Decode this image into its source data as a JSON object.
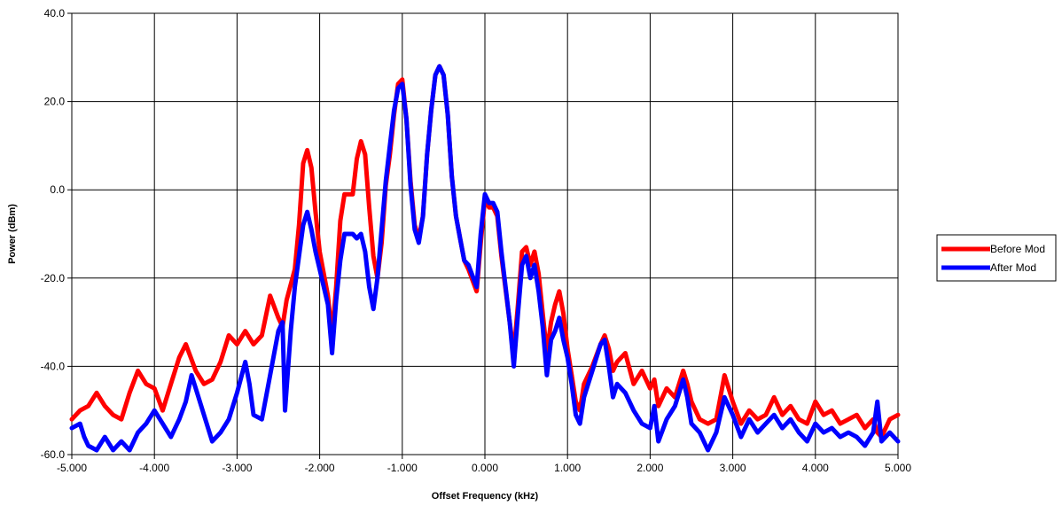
{
  "chart_data": {
    "type": "line",
    "xlabel": "Offset Frequency (kHz)",
    "ylabel": "Power (dBm)",
    "xlim": [
      -5,
      5
    ],
    "ylim": [
      -60,
      40
    ],
    "x_ticks": [
      "-5.000",
      "-4.000",
      "-3.000",
      "-2.000",
      "-1.000",
      "0.000",
      "1.000",
      "2.000",
      "3.000",
      "4.000",
      "5.000"
    ],
    "y_ticks": [
      "-60.0",
      "-40.0",
      "-20.0",
      "0.0",
      "20.0",
      "40.0"
    ],
    "grid": true,
    "legend_position": "right",
    "series": [
      {
        "name": "Before Mod",
        "color": "#ff0000",
        "points": [
          [
            -5.0,
            -52
          ],
          [
            -4.9,
            -50
          ],
          [
            -4.8,
            -49
          ],
          [
            -4.7,
            -46
          ],
          [
            -4.6,
            -49
          ],
          [
            -4.5,
            -51
          ],
          [
            -4.4,
            -52
          ],
          [
            -4.3,
            -46
          ],
          [
            -4.2,
            -41
          ],
          [
            -4.1,
            -44
          ],
          [
            -4.0,
            -45
          ],
          [
            -3.9,
            -50
          ],
          [
            -3.8,
            -44
          ],
          [
            -3.7,
            -38
          ],
          [
            -3.62,
            -35
          ],
          [
            -3.5,
            -41
          ],
          [
            -3.4,
            -44
          ],
          [
            -3.3,
            -43
          ],
          [
            -3.2,
            -39
          ],
          [
            -3.1,
            -33
          ],
          [
            -3.0,
            -35
          ],
          [
            -2.9,
            -32
          ],
          [
            -2.8,
            -35
          ],
          [
            -2.7,
            -33
          ],
          [
            -2.6,
            -24
          ],
          [
            -2.5,
            -29
          ],
          [
            -2.45,
            -31
          ],
          [
            -2.4,
            -25
          ],
          [
            -2.3,
            -18
          ],
          [
            -2.25,
            -8
          ],
          [
            -2.2,
            6
          ],
          [
            -2.15,
            9
          ],
          [
            -2.1,
            5
          ],
          [
            -2.05,
            -5
          ],
          [
            -2.0,
            -14
          ],
          [
            -1.9,
            -24
          ],
          [
            -1.85,
            -33
          ],
          [
            -1.8,
            -22
          ],
          [
            -1.75,
            -7
          ],
          [
            -1.7,
            -1
          ],
          [
            -1.6,
            -1
          ],
          [
            -1.55,
            7
          ],
          [
            -1.5,
            11
          ],
          [
            -1.45,
            8
          ],
          [
            -1.4,
            -4
          ],
          [
            -1.35,
            -15
          ],
          [
            -1.3,
            -20
          ],
          [
            -1.25,
            -12
          ],
          [
            -1.2,
            1
          ],
          [
            -1.15,
            8
          ],
          [
            -1.1,
            17
          ],
          [
            -1.05,
            24
          ],
          [
            -1.0,
            25
          ],
          [
            -0.95,
            16
          ],
          [
            -0.9,
            2
          ],
          [
            -0.85,
            -8
          ],
          [
            -0.8,
            -11
          ],
          [
            -0.75,
            -6
          ],
          [
            -0.7,
            8
          ],
          [
            -0.65,
            18
          ],
          [
            -0.6,
            26
          ],
          [
            -0.55,
            28
          ],
          [
            -0.5,
            26
          ],
          [
            -0.45,
            17
          ],
          [
            -0.4,
            3
          ],
          [
            -0.35,
            -6
          ],
          [
            -0.3,
            -11
          ],
          [
            -0.25,
            -16
          ],
          [
            -0.2,
            -18
          ],
          [
            -0.1,
            -23
          ],
          [
            -0.05,
            -12
          ],
          [
            0.0,
            -2
          ],
          [
            0.05,
            -4
          ],
          [
            0.1,
            -4
          ],
          [
            0.15,
            -6
          ],
          [
            0.2,
            -15
          ],
          [
            0.3,
            -30
          ],
          [
            0.35,
            -37
          ],
          [
            0.4,
            -26
          ],
          [
            0.45,
            -14
          ],
          [
            0.5,
            -13
          ],
          [
            0.55,
            -17
          ],
          [
            0.6,
            -14
          ],
          [
            0.65,
            -19
          ],
          [
            0.7,
            -28
          ],
          [
            0.75,
            -37
          ],
          [
            0.8,
            -30
          ],
          [
            0.85,
            -26
          ],
          [
            0.9,
            -23
          ],
          [
            0.95,
            -28
          ],
          [
            1.0,
            -36
          ],
          [
            1.05,
            -42
          ],
          [
            1.1,
            -48
          ],
          [
            1.15,
            -50
          ],
          [
            1.2,
            -44
          ],
          [
            1.3,
            -40
          ],
          [
            1.4,
            -35
          ],
          [
            1.45,
            -33
          ],
          [
            1.5,
            -36
          ],
          [
            1.55,
            -41
          ],
          [
            1.6,
            -39
          ],
          [
            1.7,
            -37
          ],
          [
            1.8,
            -44
          ],
          [
            1.9,
            -41
          ],
          [
            2.0,
            -45
          ],
          [
            2.05,
            -43
          ],
          [
            2.1,
            -49
          ],
          [
            2.2,
            -45
          ],
          [
            2.3,
            -47
          ],
          [
            2.4,
            -41
          ],
          [
            2.45,
            -44
          ],
          [
            2.5,
            -48
          ],
          [
            2.6,
            -52
          ],
          [
            2.7,
            -53
          ],
          [
            2.8,
            -52
          ],
          [
            2.9,
            -42
          ],
          [
            3.0,
            -48
          ],
          [
            3.1,
            -53
          ],
          [
            3.2,
            -50
          ],
          [
            3.3,
            -52
          ],
          [
            3.4,
            -51
          ],
          [
            3.5,
            -47
          ],
          [
            3.6,
            -51
          ],
          [
            3.7,
            -49
          ],
          [
            3.8,
            -52
          ],
          [
            3.9,
            -53
          ],
          [
            4.0,
            -48
          ],
          [
            4.1,
            -51
          ],
          [
            4.2,
            -50
          ],
          [
            4.3,
            -53
          ],
          [
            4.4,
            -52
          ],
          [
            4.5,
            -51
          ],
          [
            4.6,
            -54
          ],
          [
            4.7,
            -52
          ],
          [
            4.75,
            -55
          ],
          [
            4.8,
            -56
          ],
          [
            4.9,
            -52
          ],
          [
            5.0,
            -51
          ]
        ]
      },
      {
        "name": "After Mod",
        "color": "#0000ff",
        "points": [
          [
            -5.0,
            -54
          ],
          [
            -4.9,
            -53
          ],
          [
            -4.85,
            -56
          ],
          [
            -4.8,
            -58
          ],
          [
            -4.7,
            -59
          ],
          [
            -4.6,
            -56
          ],
          [
            -4.5,
            -59
          ],
          [
            -4.4,
            -57
          ],
          [
            -4.3,
            -59
          ],
          [
            -4.2,
            -55
          ],
          [
            -4.1,
            -53
          ],
          [
            -4.0,
            -50
          ],
          [
            -3.9,
            -53
          ],
          [
            -3.8,
            -56
          ],
          [
            -3.7,
            -52
          ],
          [
            -3.62,
            -48
          ],
          [
            -3.55,
            -42
          ],
          [
            -3.5,
            -45
          ],
          [
            -3.4,
            -51
          ],
          [
            -3.3,
            -57
          ],
          [
            -3.2,
            -55
          ],
          [
            -3.1,
            -52
          ],
          [
            -3.0,
            -46
          ],
          [
            -2.9,
            -39
          ],
          [
            -2.85,
            -44
          ],
          [
            -2.8,
            -51
          ],
          [
            -2.7,
            -52
          ],
          [
            -2.6,
            -42
          ],
          [
            -2.5,
            -32
          ],
          [
            -2.45,
            -30
          ],
          [
            -2.42,
            -50
          ],
          [
            -2.35,
            -32
          ],
          [
            -2.3,
            -22
          ],
          [
            -2.25,
            -15
          ],
          [
            -2.2,
            -8
          ],
          [
            -2.15,
            -5
          ],
          [
            -2.1,
            -9
          ],
          [
            -2.05,
            -14
          ],
          [
            -2.0,
            -18
          ],
          [
            -1.9,
            -26
          ],
          [
            -1.85,
            -37
          ],
          [
            -1.8,
            -25
          ],
          [
            -1.75,
            -16
          ],
          [
            -1.7,
            -10
          ],
          [
            -1.6,
            -10
          ],
          [
            -1.55,
            -11
          ],
          [
            -1.5,
            -10
          ],
          [
            -1.45,
            -14
          ],
          [
            -1.4,
            -22
          ],
          [
            -1.35,
            -27
          ],
          [
            -1.3,
            -20
          ],
          [
            -1.25,
            -9
          ],
          [
            -1.2,
            2
          ],
          [
            -1.15,
            10
          ],
          [
            -1.1,
            18
          ],
          [
            -1.05,
            23
          ],
          [
            -1.0,
            24
          ],
          [
            -0.95,
            16
          ],
          [
            -0.9,
            1
          ],
          [
            -0.85,
            -9
          ],
          [
            -0.8,
            -12
          ],
          [
            -0.75,
            -6
          ],
          [
            -0.7,
            8
          ],
          [
            -0.65,
            18
          ],
          [
            -0.6,
            26
          ],
          [
            -0.55,
            28
          ],
          [
            -0.5,
            26
          ],
          [
            -0.45,
            17
          ],
          [
            -0.4,
            3
          ],
          [
            -0.35,
            -6
          ],
          [
            -0.3,
            -11
          ],
          [
            -0.25,
            -16
          ],
          [
            -0.2,
            -17
          ],
          [
            -0.1,
            -22
          ],
          [
            -0.05,
            -10
          ],
          [
            0.0,
            -1
          ],
          [
            0.05,
            -3
          ],
          [
            0.1,
            -3
          ],
          [
            0.15,
            -5
          ],
          [
            0.2,
            -14
          ],
          [
            0.3,
            -30
          ],
          [
            0.35,
            -40
          ],
          [
            0.4,
            -28
          ],
          [
            0.45,
            -17
          ],
          [
            0.5,
            -15
          ],
          [
            0.55,
            -20
          ],
          [
            0.6,
            -17
          ],
          [
            0.65,
            -23
          ],
          [
            0.7,
            -31
          ],
          [
            0.75,
            -42
          ],
          [
            0.8,
            -34
          ],
          [
            0.85,
            -32
          ],
          [
            0.9,
            -29
          ],
          [
            0.95,
            -34
          ],
          [
            1.0,
            -38
          ],
          [
            1.05,
            -44
          ],
          [
            1.1,
            -51
          ],
          [
            1.15,
            -53
          ],
          [
            1.2,
            -47
          ],
          [
            1.3,
            -41
          ],
          [
            1.4,
            -35
          ],
          [
            1.45,
            -34
          ],
          [
            1.5,
            -40
          ],
          [
            1.55,
            -47
          ],
          [
            1.6,
            -44
          ],
          [
            1.7,
            -46
          ],
          [
            1.8,
            -50
          ],
          [
            1.9,
            -53
          ],
          [
            2.0,
            -54
          ],
          [
            2.05,
            -49
          ],
          [
            2.1,
            -57
          ],
          [
            2.2,
            -52
          ],
          [
            2.3,
            -49
          ],
          [
            2.4,
            -43
          ],
          [
            2.45,
            -47
          ],
          [
            2.5,
            -53
          ],
          [
            2.6,
            -55
          ],
          [
            2.7,
            -59
          ],
          [
            2.8,
            -55
          ],
          [
            2.9,
            -47
          ],
          [
            3.0,
            -51
          ],
          [
            3.1,
            -56
          ],
          [
            3.2,
            -52
          ],
          [
            3.3,
            -55
          ],
          [
            3.4,
            -53
          ],
          [
            3.5,
            -51
          ],
          [
            3.6,
            -54
          ],
          [
            3.7,
            -52
          ],
          [
            3.8,
            -55
          ],
          [
            3.9,
            -57
          ],
          [
            4.0,
            -53
          ],
          [
            4.1,
            -55
          ],
          [
            4.2,
            -54
          ],
          [
            4.3,
            -56
          ],
          [
            4.4,
            -55
          ],
          [
            4.5,
            -56
          ],
          [
            4.6,
            -58
          ],
          [
            4.7,
            -55
          ],
          [
            4.75,
            -48
          ],
          [
            4.8,
            -57
          ],
          [
            4.9,
            -55
          ],
          [
            5.0,
            -57
          ]
        ]
      }
    ]
  }
}
